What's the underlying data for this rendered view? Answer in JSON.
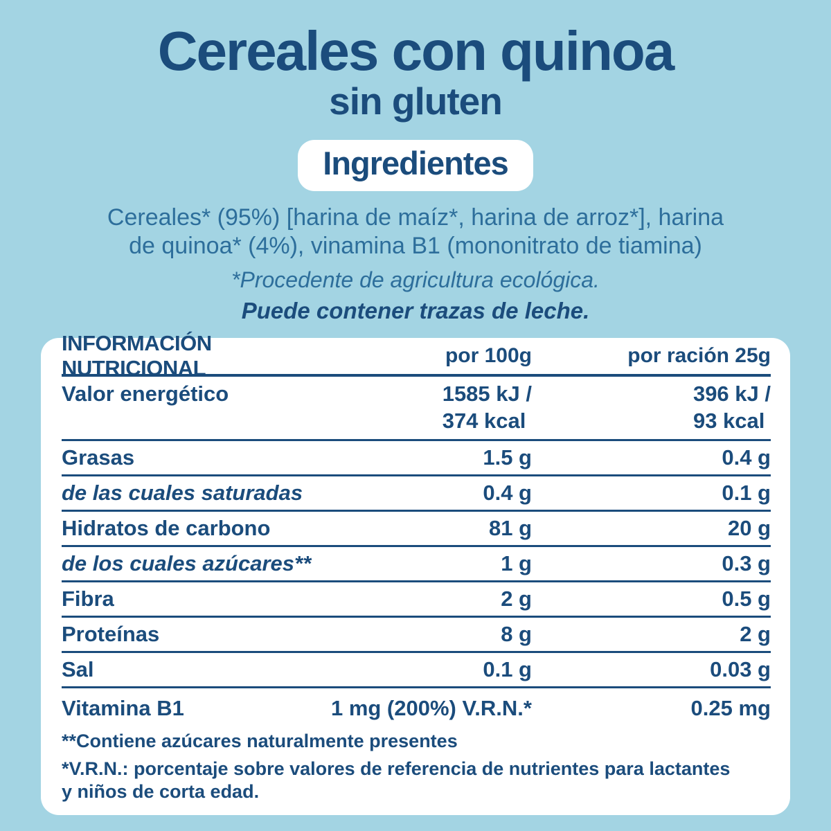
{
  "colors": {
    "background": "#a3d4e3",
    "dark_blue": "#1b4c7c",
    "medium_blue": "#2d6e9b",
    "card_white": "#ffffff"
  },
  "header": {
    "title": "Cereales con quinoa",
    "subtitle": "sin gluten",
    "ingredients_badge": "Ingredientes",
    "ingredients_lines": [
      "Cereales* (95%) [harina de maíz*, harina de arroz*], harina",
      "de quinoa* (4%), vinamina B1 (mononitrato de tiamina)"
    ],
    "organic_note": "*Procedente de agricultura ecológica.",
    "traces_note": "Puede contener trazas de leche."
  },
  "nutrition_table": {
    "columns": [
      "INFORMACIÓN NUTRICIONAL",
      "por 100g",
      "por ración 25g"
    ],
    "energy_row": {
      "label": "Valor energético",
      "per_100g_line1": "1585 kJ /",
      "per_100g_line2": "374 kcal",
      "per_portion_line1": "396 kJ /",
      "per_portion_line2": "93 kcal"
    },
    "rows": [
      {
        "label": "Grasas",
        "per_100g": "1.5 g",
        "per_portion": "0.4 g"
      },
      {
        "label": "de las cuales saturadas",
        "per_100g": "0.4 g",
        "per_portion": "0.1 g"
      },
      {
        "label": "Hidratos de carbono",
        "per_100g": "81 g",
        "per_portion": "20 g"
      },
      {
        "label": "de los cuales azúcares**",
        "per_100g": "1 g",
        "per_portion": "0.3 g"
      },
      {
        "label": "Fibra",
        "per_100g": "2 g",
        "per_portion": "0.5 g"
      },
      {
        "label": "Proteínas",
        "per_100g": "8 g",
        "per_portion": "2 g"
      },
      {
        "label": "Sal",
        "per_100g": "0.1 g",
        "per_portion": "0.03 g"
      }
    ],
    "vitamin_row": {
      "label": "Vitamina B1",
      "per_100g": "1 mg (200%) V.R.N.*",
      "per_portion": "0.25 mg"
    },
    "footnote_lines": [
      "**Contiene azúcares naturalmente presentes",
      "*V.R.N.: porcentaje sobre valores de referencia de nutrientes para lactantes",
      "y niños de corta edad."
    ]
  }
}
